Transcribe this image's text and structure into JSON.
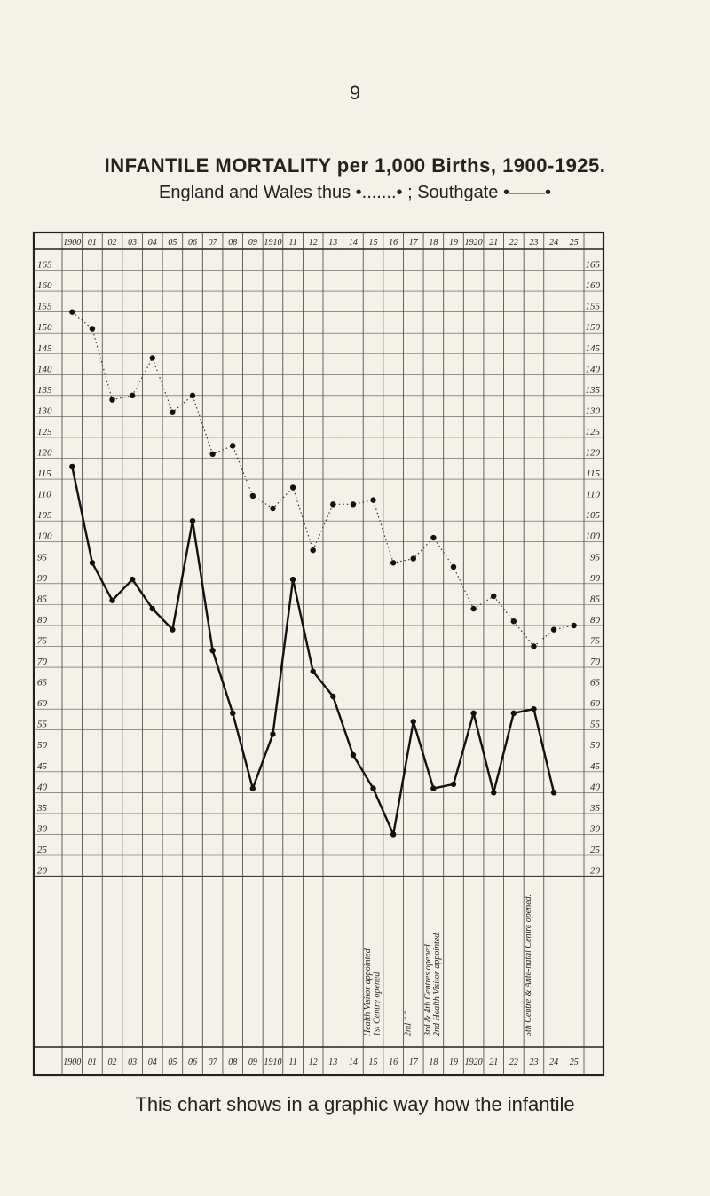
{
  "page": {
    "number": "9",
    "caption": "This chart shows in a graphic way how the infantile"
  },
  "title": "INFANTILE MORTALITY per 1,000 Births, 1900-1925.",
  "subtitle": "England and Wales thus •.......• ; Southgate •——•",
  "chart_data": {
    "type": "line",
    "title": "INFANTILE MORTALITY per 1,000 Births, 1900-1925.",
    "x_labels": [
      "1900",
      "01",
      "02",
      "03",
      "04",
      "05",
      "06",
      "07",
      "08",
      "09",
      "1910",
      "11",
      "12",
      "13",
      "14",
      "15",
      "16",
      "17",
      "18",
      "19",
      "1920",
      "21",
      "22",
      "23",
      "24",
      "25"
    ],
    "y_ticks": [
      165,
      160,
      155,
      150,
      145,
      140,
      135,
      130,
      125,
      120,
      115,
      110,
      105,
      100,
      95,
      90,
      85,
      80,
      75,
      70,
      65,
      60,
      55,
      50,
      45,
      40,
      35,
      30,
      25,
      20
    ],
    "ylim": [
      20,
      165
    ],
    "series": [
      {
        "name": "England and Wales",
        "style": "dotted",
        "color": "#333333",
        "values": [
          150,
          146,
          129,
          130,
          139,
          126,
          130,
          116,
          118,
          106,
          103,
          108,
          93,
          104,
          104,
          105,
          90,
          91,
          96,
          89,
          79,
          82,
          76,
          70,
          74,
          75
        ]
      },
      {
        "name": "Southgate",
        "style": "solid",
        "color": "#111111",
        "values": [
          113,
          90,
          81,
          86,
          79,
          74,
          100,
          69,
          54,
          36,
          49,
          86,
          64,
          58,
          44,
          36,
          25,
          52,
          36,
          37,
          54,
          35,
          54,
          55,
          35,
          null
        ]
      }
    ],
    "annotations": [
      {
        "x": "15",
        "text": "Health Visitor appointed"
      },
      {
        "x": "15",
        "text": "1st Centre opened"
      },
      {
        "x": "17",
        "text": "2nd \"       \""
      },
      {
        "x": "18",
        "text": "3rd & 4th Centres opened."
      },
      {
        "x": "18",
        "text": "2nd Health Visitor appointed."
      },
      {
        "x": "23",
        "text": "5th Centre & Ante-natal Centre opened."
      }
    ],
    "grid": true,
    "legend": "above chart (subtitle text)"
  }
}
